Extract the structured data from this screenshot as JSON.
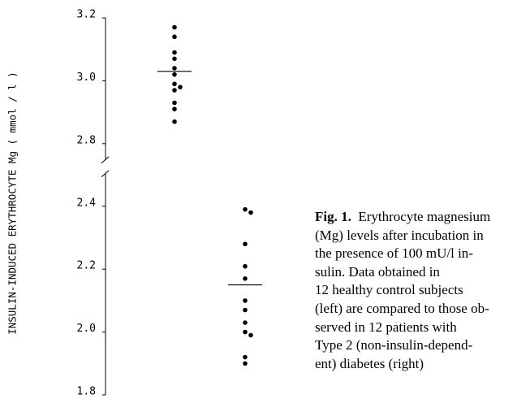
{
  "chart_data": {
    "type": "scatter",
    "y_label": "INSULIN-INDUCED ERYTHROCYTE Mg ( mmol / l )",
    "ylim": [
      1.8,
      3.2
    ],
    "ybreak": [
      2.4,
      2.8
    ],
    "yticks": [
      {
        "value": 1.8,
        "label": "1.8"
      },
      {
        "value": 2.0,
        "label": "2.0"
      },
      {
        "value": 2.2,
        "label": "2.2"
      },
      {
        "value": 2.4,
        "label": "2.4"
      },
      {
        "value": 2.8,
        "label": "2.8"
      },
      {
        "value": 3.0,
        "label": "3.0"
      },
      {
        "value": 3.2,
        "label": "3.2"
      }
    ],
    "series": [
      {
        "color": "#000000",
        "values": [
          3.17,
          3.14,
          3.09,
          3.07,
          3.04,
          3.02,
          2.99,
          2.98,
          2.97,
          2.93,
          2.91,
          2.87
        ],
        "mean": 3.03
      },
      {
        "color": "#000000",
        "values": [
          2.41,
          2.39,
          2.38,
          2.28,
          2.17,
          2.1,
          2.07,
          2.03,
          2.0,
          1.99,
          1.92,
          1.9
        ],
        "mean": 2.15
      }
    ]
  },
  "caption": {
    "label": "Fig. 1.",
    "lines": [
      "Erythrocyte magnesium",
      "(Mg) levels after incubation in",
      "the presence of 100 mU/l in-",
      "sulin. Data obtained in",
      "12 healthy control subjects",
      "(left) are compared to those ob-",
      "served in 12 patients with",
      "Type 2 (non-insulin-depend-",
      "ent) diabetes (right)"
    ]
  }
}
